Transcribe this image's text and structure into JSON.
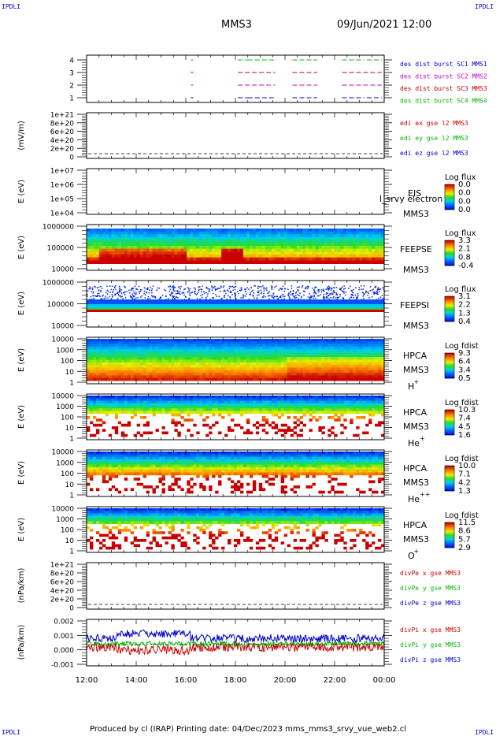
{
  "header": {
    "corner_label": "IPDLI",
    "spacecraft": "MMS3",
    "datetime": "09/Jun/2021 12:00"
  },
  "footer": {
    "text": "Produced by cl (IRAP)    Printing date: 04/Dec/2023    mms_mms3_srvy_vue_web2.cl"
  },
  "colors": {
    "blue": "#0000cc",
    "magenta": "#cc00cc",
    "red": "#cc0000",
    "green": "#00bb00"
  },
  "chart_data": [
    {
      "type": "line",
      "id": "burst",
      "y_ticks": [
        "4",
        "3",
        "2",
        "1"
      ],
      "series": [
        {
          "name": "des dist burst SC1 MMS1",
          "color": "#0000cc",
          "level": 1,
          "intervals": [
            [
              16.2,
              16.3
            ],
            [
              18.1,
              18.5
            ],
            [
              18.5,
              19.6
            ],
            [
              20.3,
              21.3
            ],
            [
              22.3,
              23.2
            ],
            [
              23.3,
              23.9
            ]
          ]
        },
        {
          "name": "des dist burst SC2 MMS2",
          "color": "#cc00cc",
          "level": 2,
          "intervals": [
            [
              16.2,
              16.3
            ],
            [
              18.1,
              19.6
            ],
            [
              20.3,
              21.3
            ],
            [
              22.3,
              23.9
            ]
          ]
        },
        {
          "name": "des dist burst SC3 MMS3",
          "color": "#cc0000",
          "level": 3,
          "intervals": [
            [
              16.2,
              16.3
            ],
            [
              18.1,
              19.6
            ],
            [
              20.3,
              21.3
            ],
            [
              22.3,
              23.9
            ]
          ]
        },
        {
          "name": "des dist burst SC4 MMS4",
          "color": "#00bb00",
          "level": 4,
          "intervals": [
            [
              16.2,
              16.3
            ],
            [
              18.1,
              18.5
            ],
            [
              18.5,
              19.6
            ],
            [
              20.3,
              21.3
            ],
            [
              22.3,
              23.2
            ],
            [
              23.3,
              23.9
            ]
          ]
        }
      ]
    },
    {
      "type": "line",
      "id": "edi",
      "ylabel": "(mV/m)",
      "y_ticks": [
        "1e+21",
        "8e+20",
        "6e+20",
        "4e+20",
        "2e+20",
        "0"
      ],
      "y_values": [
        1e+21,
        8e+20,
        6e+20,
        4e+20,
        2e+20,
        0
      ],
      "series": [
        {
          "name": "edi ex gse l2 MMS3",
          "color": "#cc0000"
        },
        {
          "name": "edi ey gse l2 MMS3",
          "color": "#00bb00"
        },
        {
          "name": "edi ez gse l2 MMS3",
          "color": "#0000cc"
        }
      ]
    },
    {
      "type": "heatmap",
      "id": "eis",
      "ylabel": "E (eV)",
      "y_ticks": [
        "1e+07",
        "1e+06",
        "1e+05",
        "1e+04"
      ],
      "instrument": "EIS",
      "spacecraft": "MMS3",
      "overlay_text": "l_srvy electron to",
      "colorbar": {
        "title": "Log flux",
        "ticks": [
          "0.0",
          "0.0",
          "0.0",
          "0.0"
        ]
      }
    },
    {
      "type": "heatmap",
      "id": "feepse",
      "ylabel": "E (eV)",
      "y_ticks": [
        "1000000",
        "100000",
        "10000"
      ],
      "instrument": "FEEPSE",
      "spacecraft": "MMS3",
      "colorbar": {
        "title": "Log flux",
        "ticks": [
          "3.3",
          "2.1",
          "0.8",
          "-0.4"
        ]
      }
    },
    {
      "type": "heatmap",
      "id": "feepsi",
      "ylabel": "E (eV)",
      "y_ticks": [
        "1000000",
        "100000",
        "10000"
      ],
      "instrument": "FEEPSI",
      "spacecraft": "MMS3",
      "colorbar": {
        "title": "Log flux",
        "ticks": [
          "3.1",
          "2.2",
          "1.3",
          "0.4"
        ]
      }
    },
    {
      "type": "heatmap",
      "id": "hpca_h",
      "ylabel": "E (eV)",
      "y_ticks": [
        "10000",
        "1000",
        "100",
        "10",
        "1"
      ],
      "instrument": "HPCA",
      "spacecraft": "MMS3",
      "species": "H",
      "charge": "+",
      "colorbar": {
        "title": "Log fdist",
        "ticks": [
          "9.3",
          "6.4",
          "3.4",
          "0.5"
        ]
      }
    },
    {
      "type": "heatmap",
      "id": "hpca_he",
      "ylabel": "E (eV)",
      "y_ticks": [
        "10000",
        "1000",
        "100",
        "10",
        "1"
      ],
      "instrument": "HPCA",
      "spacecraft": "MMS3",
      "species": "He",
      "charge": "+",
      "colorbar": {
        "title": "Log fdist",
        "ticks": [
          "10.3",
          "7.4",
          "4.5",
          "1.6"
        ]
      }
    },
    {
      "type": "heatmap",
      "id": "hpca_hepp",
      "ylabel": "E (eV)",
      "y_ticks": [
        "10000",
        "1000",
        "100",
        "10",
        "1"
      ],
      "instrument": "HPCA",
      "spacecraft": "MMS3",
      "species": "He",
      "charge": "++",
      "colorbar": {
        "title": "Log fdist",
        "ticks": [
          "10.0",
          "7.1",
          "4.2",
          "1.3"
        ]
      }
    },
    {
      "type": "heatmap",
      "id": "hpca_o",
      "ylabel": "E (eV)",
      "y_ticks": [
        "10000",
        "1000",
        "100",
        "10",
        "1"
      ],
      "instrument": "HPCA",
      "spacecraft": "MMS3",
      "species": "O",
      "charge": "+",
      "colorbar": {
        "title": "Log fdist",
        "ticks": [
          "11.5",
          "8.6",
          "5.7",
          "2.9"
        ]
      }
    },
    {
      "type": "line",
      "id": "divpe",
      "ylabel": "(nPa/km)",
      "y_ticks": [
        "1e+21",
        "8e+20",
        "6e+20",
        "4e+20",
        "2e+20",
        "0"
      ],
      "y_values": [
        1e+21,
        8e+20,
        6e+20,
        4e+20,
        2e+20,
        0
      ],
      "series": [
        {
          "name": "divPe x gse MMS3",
          "color": "#cc0000"
        },
        {
          "name": "divPe y gse MMS3",
          "color": "#00bb00"
        },
        {
          "name": "divPe z gse MMS3",
          "color": "#0000cc"
        }
      ]
    },
    {
      "type": "line",
      "id": "divpi",
      "ylabel": "(nPa/km)",
      "y_ticks": [
        "0.002",
        "0.001",
        "0.000",
        "-0.001"
      ],
      "ylim": [
        -0.0015,
        0.002
      ],
      "series": [
        {
          "name": "divPi x gse MMS3",
          "color": "#cc0000"
        },
        {
          "name": "divPi y gse MMS3",
          "color": "#00bb00"
        },
        {
          "name": "divPi z gse MMS3",
          "color": "#0000cc"
        }
      ]
    }
  ],
  "x_axis": {
    "ticks": [
      "12:00",
      "14:00",
      "16:00",
      "18:00",
      "20:00",
      "22:00",
      "00:00"
    ],
    "range_hours": [
      12,
      24
    ]
  }
}
